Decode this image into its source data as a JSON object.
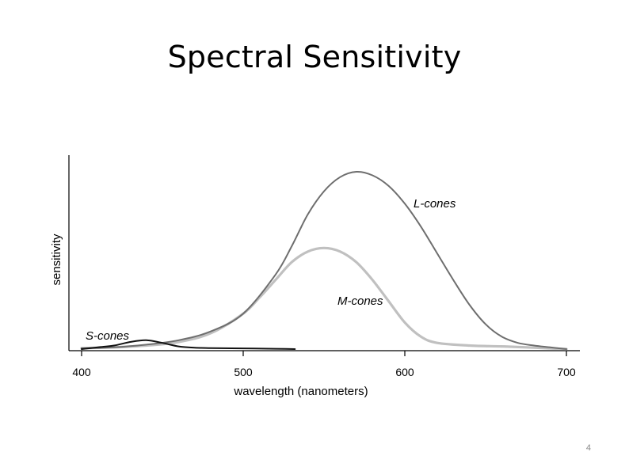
{
  "slide": {
    "title": "Spectral Sensitivity",
    "page_number": "4"
  },
  "chart_data": {
    "type": "line",
    "xlabel": "wavelength (nanometers)",
    "ylabel": "sensitivity",
    "xlim": [
      400,
      700
    ],
    "ylim": [
      0,
      1
    ],
    "x_ticks": [
      400,
      500,
      600,
      700
    ],
    "x_tick_labels": [
      "400",
      "500",
      "600",
      "700"
    ],
    "grid": false,
    "series": [
      {
        "name": "S-cones",
        "color": "#111111",
        "x": [
          400,
          410,
          420,
          430,
          440,
          450,
          460,
          470,
          480,
          500,
          520,
          532
        ],
        "y": [
          0.0,
          0.01,
          0.02,
          0.04,
          0.05,
          0.035,
          0.015,
          0.008,
          0.006,
          0.004,
          0.002,
          0.0
        ]
      },
      {
        "name": "M-cones",
        "color": "#c0c0c0",
        "x": [
          400,
          420,
          440,
          460,
          480,
          500,
          510,
          520,
          530,
          540,
          550,
          560,
          570,
          580,
          590,
          600,
          610,
          620,
          640,
          660,
          680,
          700
        ],
        "y": [
          0.005,
          0.01,
          0.02,
          0.04,
          0.09,
          0.2,
          0.29,
          0.39,
          0.49,
          0.55,
          0.57,
          0.55,
          0.49,
          0.39,
          0.27,
          0.15,
          0.07,
          0.035,
          0.02,
          0.015,
          0.008,
          0.0
        ]
      },
      {
        "name": "L-cones",
        "color": "#6e6e6e",
        "x": [
          400,
          420,
          440,
          460,
          480,
          500,
          520,
          530,
          540,
          550,
          560,
          570,
          580,
          590,
          600,
          610,
          620,
          630,
          640,
          650,
          660,
          670,
          680,
          690,
          700
        ],
        "y": [
          0.005,
          0.01,
          0.025,
          0.05,
          0.1,
          0.2,
          0.42,
          0.58,
          0.76,
          0.89,
          0.97,
          1.0,
          0.98,
          0.92,
          0.82,
          0.69,
          0.54,
          0.39,
          0.25,
          0.14,
          0.07,
          0.035,
          0.02,
          0.01,
          0.0
        ]
      }
    ]
  }
}
